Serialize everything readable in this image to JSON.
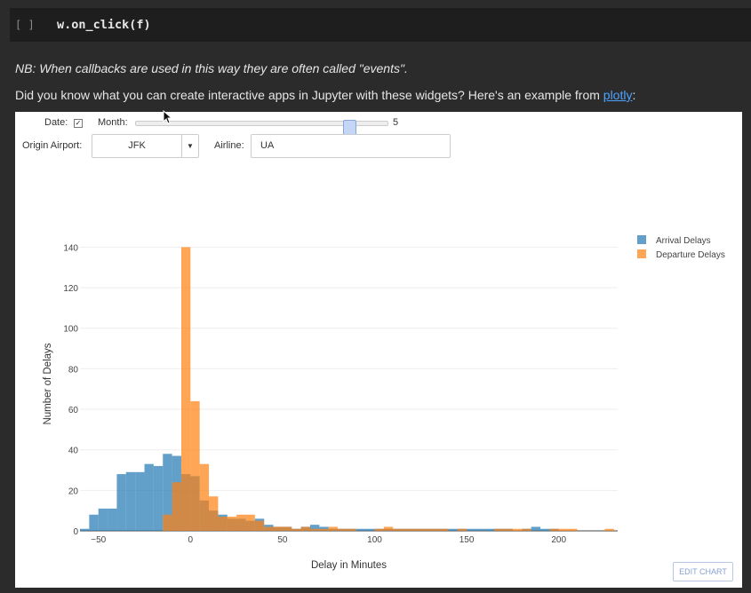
{
  "code_cell": {
    "prompt": "[ ]",
    "code": "w.on_click(f)"
  },
  "markdown": {
    "note": "NB: When callbacks are used in this way they are often called \"events\".",
    "text_before_link": "Did you know what you can create interactive apps in Jupyter with these widgets? Here's an example from ",
    "link_text": "plotly",
    "text_after_link": ":"
  },
  "widgets": {
    "date_label": "Date:",
    "date_checked": true,
    "month_label": "Month:",
    "month_value": "5",
    "month_slider_fraction": 0.37,
    "origin_label": "Origin Airport:",
    "origin_value": "JFK",
    "airline_label": "Airline:",
    "airline_value": "UA"
  },
  "edit_chart_label": "EDIT CHART",
  "chart_data": {
    "type": "bar",
    "mode": "overlay-histogram",
    "xlabel": "Delay in Minutes",
    "ylabel": "Number of Delays",
    "xlim": [
      -60,
      232
    ],
    "ylim": [
      0,
      145
    ],
    "bin_width": 5,
    "x_ticks": [
      -50,
      0,
      50,
      100,
      150,
      200
    ],
    "x_tick_labels": [
      "−50",
      "0",
      "50",
      "100",
      "150",
      "200"
    ],
    "y_ticks": [
      0,
      20,
      40,
      60,
      80,
      100,
      120,
      140
    ],
    "legend_position": "top-right",
    "grid": true,
    "series": [
      {
        "name": "Arrival Delays",
        "color": "#1f77b4",
        "bins": [
          [
            -60,
            1
          ],
          [
            -55,
            8
          ],
          [
            -50,
            11
          ],
          [
            -45,
            11
          ],
          [
            -40,
            28
          ],
          [
            -35,
            29
          ],
          [
            -30,
            29
          ],
          [
            -25,
            33
          ],
          [
            -20,
            32
          ],
          [
            -15,
            38
          ],
          [
            -10,
            37
          ],
          [
            -5,
            28
          ],
          [
            0,
            27
          ],
          [
            5,
            15
          ],
          [
            10,
            10
          ],
          [
            15,
            8
          ],
          [
            20,
            6
          ],
          [
            25,
            6
          ],
          [
            30,
            5
          ],
          [
            35,
            6
          ],
          [
            40,
            3
          ],
          [
            45,
            2
          ],
          [
            50,
            2
          ],
          [
            55,
            1
          ],
          [
            60,
            2
          ],
          [
            65,
            3
          ],
          [
            70,
            2
          ],
          [
            75,
            1
          ],
          [
            80,
            1
          ],
          [
            85,
            1
          ],
          [
            90,
            1
          ],
          [
            95,
            1
          ],
          [
            100,
            1
          ],
          [
            105,
            1
          ],
          [
            110,
            1
          ],
          [
            115,
            1
          ],
          [
            120,
            1
          ],
          [
            125,
            1
          ],
          [
            130,
            1
          ],
          [
            135,
            1
          ],
          [
            140,
            1
          ],
          [
            145,
            1
          ],
          [
            150,
            1
          ],
          [
            155,
            1
          ],
          [
            160,
            1
          ],
          [
            165,
            1
          ],
          [
            170,
            1
          ],
          [
            180,
            1
          ],
          [
            185,
            2
          ],
          [
            190,
            1
          ],
          [
            195,
            1
          ]
        ]
      },
      {
        "name": "Departure Delays",
        "color": "#ff7f0e",
        "bins": [
          [
            -15,
            8
          ],
          [
            -10,
            24
          ],
          [
            -5,
            140
          ],
          [
            0,
            64
          ],
          [
            5,
            33
          ],
          [
            10,
            17
          ],
          [
            15,
            7
          ],
          [
            20,
            7
          ],
          [
            25,
            8
          ],
          [
            30,
            8
          ],
          [
            35,
            5
          ],
          [
            40,
            2
          ],
          [
            45,
            2
          ],
          [
            50,
            2
          ],
          [
            55,
            1
          ],
          [
            60,
            2
          ],
          [
            65,
            1
          ],
          [
            70,
            1
          ],
          [
            75,
            2
          ],
          [
            80,
            1
          ],
          [
            85,
            1
          ],
          [
            100,
            1
          ],
          [
            105,
            2
          ],
          [
            110,
            1
          ],
          [
            115,
            1
          ],
          [
            120,
            1
          ],
          [
            125,
            1
          ],
          [
            130,
            1
          ],
          [
            135,
            1
          ],
          [
            145,
            1
          ],
          [
            165,
            1
          ],
          [
            170,
            1
          ],
          [
            175,
            1
          ],
          [
            180,
            1
          ],
          [
            195,
            1
          ],
          [
            200,
            1
          ],
          [
            205,
            1
          ],
          [
            225,
            1
          ]
        ]
      }
    ]
  }
}
